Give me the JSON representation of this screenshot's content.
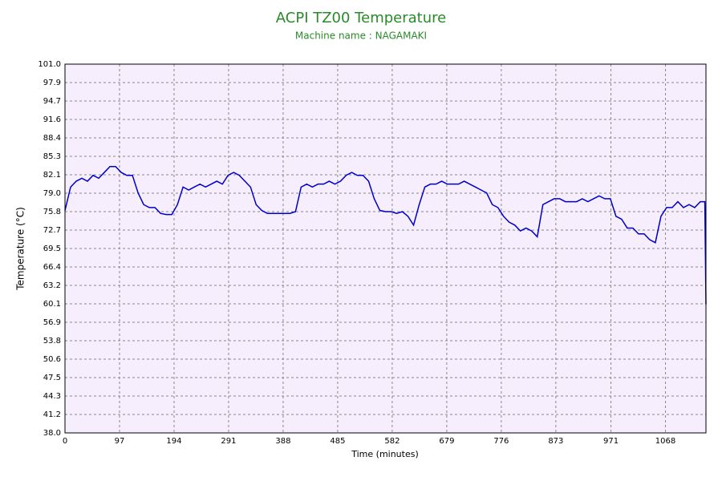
{
  "chart_data": {
    "type": "line",
    "title": "ACPI TZ00 Temperature",
    "subtitle": "Machine name : NAGAMAKI",
    "x_label": "Time (minutes)",
    "y_label": "Temperature (°C)",
    "xlim": [
      0,
      1140
    ],
    "xticks": [
      0,
      97,
      194,
      291,
      388,
      485,
      582,
      679,
      776,
      873,
      971,
      1068
    ],
    "ylim": [
      38,
      101
    ],
    "yticks": [
      {
        "value": 38,
        "label": "38.0"
      },
      {
        "value": 41.15,
        "label": "41.2"
      },
      {
        "value": 44.3,
        "label": "44.3"
      },
      {
        "value": 47.45,
        "label": "47.5"
      },
      {
        "value": 50.6,
        "label": "50.6"
      },
      {
        "value": 53.75,
        "label": "53.8"
      },
      {
        "value": 56.9,
        "label": "56.9"
      },
      {
        "value": 60.05,
        "label": "60.1"
      },
      {
        "value": 63.2,
        "label": "63.2"
      },
      {
        "value": 66.35,
        "label": "66.4"
      },
      {
        "value": 69.5,
        "label": "69.5"
      },
      {
        "value": 72.65,
        "label": "72.7"
      },
      {
        "value": 75.8,
        "label": "75.8"
      },
      {
        "value": 78.95,
        "label": "79.0"
      },
      {
        "value": 82.1,
        "label": "82.1"
      },
      {
        "value": 85.25,
        "label": "85.3"
      },
      {
        "value": 88.4,
        "label": "88.4"
      },
      {
        "value": 91.55,
        "label": "91.6"
      },
      {
        "value": 94.7,
        "label": "94.7"
      },
      {
        "value": 97.85,
        "label": "97.9"
      },
      {
        "value": 101,
        "label": "101.0"
      }
    ],
    "grid": true,
    "x": [
      0,
      10,
      20,
      30,
      40,
      50,
      60,
      70,
      80,
      90,
      100,
      110,
      120,
      130,
      140,
      150,
      160,
      170,
      180,
      190,
      200,
      210,
      220,
      230,
      240,
      250,
      260,
      270,
      280,
      290,
      300,
      310,
      320,
      330,
      340,
      350,
      360,
      370,
      380,
      390,
      400,
      410,
      420,
      430,
      440,
      450,
      460,
      470,
      480,
      490,
      500,
      510,
      520,
      530,
      540,
      550,
      560,
      570,
      580,
      590,
      600,
      610,
      620,
      630,
      640,
      650,
      660,
      670,
      680,
      690,
      700,
      710,
      720,
      730,
      740,
      750,
      760,
      770,
      780,
      790,
      800,
      810,
      820,
      830,
      840,
      850,
      860,
      870,
      880,
      890,
      900,
      910,
      920,
      930,
      940,
      950,
      960,
      970,
      980,
      990,
      1000,
      1010,
      1020,
      1030,
      1040,
      1050,
      1060,
      1070,
      1080,
      1090,
      1100,
      1110,
      1120,
      1130,
      1138,
      1140
    ],
    "series": [
      {
        "color": "#0000cc",
        "values": [
          76,
          80,
          81,
          81.5,
          81,
          82,
          81.5,
          82.5,
          83.5,
          83.5,
          82.5,
          82,
          82,
          79,
          77,
          76.5,
          76.5,
          75.5,
          75.3,
          75.3,
          77,
          80,
          79.5,
          80,
          80.5,
          80,
          80.5,
          81,
          80.5,
          82,
          82.5,
          82,
          81,
          80,
          77,
          76,
          75.5,
          75.5,
          75.5,
          75.5,
          75.5,
          75.8,
          80,
          80.5,
          80,
          80.5,
          80.5,
          81,
          80.5,
          81,
          82,
          82.5,
          82,
          82,
          81,
          78,
          76,
          75.8,
          75.8,
          75.5,
          75.8,
          75,
          73.5,
          77,
          80,
          80.5,
          80.5,
          81,
          80.5,
          80.5,
          80.5,
          81,
          80.5,
          80,
          79.5,
          79,
          77,
          76.5,
          75,
          74,
          73.5,
          72.5,
          73,
          72.5,
          71.5,
          77,
          77.5,
          78,
          78,
          77.5,
          77.5,
          77.5,
          78,
          77.5,
          78,
          78.5,
          78,
          78,
          75,
          74.5,
          73,
          73,
          72,
          72,
          71,
          70.5,
          75,
          76.5,
          76.5,
          77.5,
          76.5,
          77,
          76.5,
          77.5,
          77.5,
          60
        ]
      }
    ]
  }
}
